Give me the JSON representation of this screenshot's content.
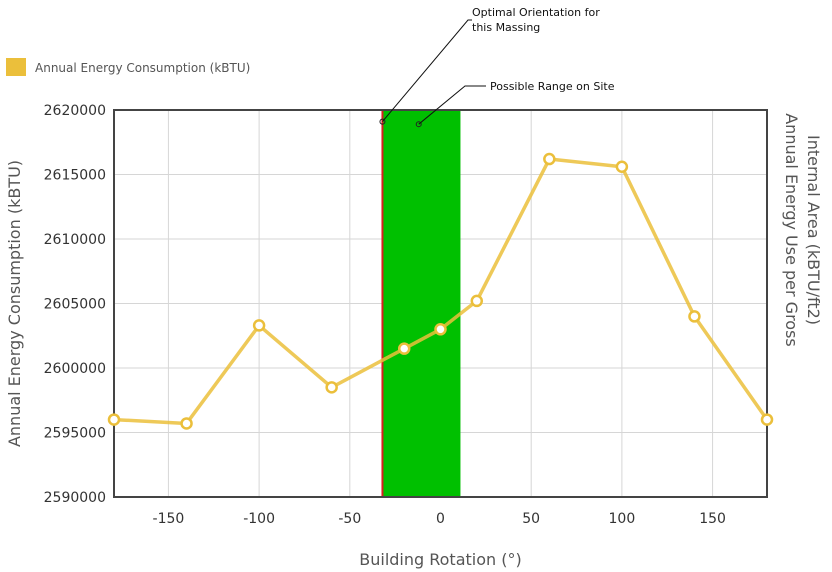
{
  "chart_data": {
    "type": "line",
    "legend": {
      "label": "Annual Energy Consumption (kBTU)",
      "position": "top-left",
      "color": "#ebbf3b"
    },
    "xlabel": "Building Rotation (°)",
    "ylabel": "Annual Energy Consumption (kBTU)",
    "y2label_lines": [
      "Annual Energy Use per Gross",
      "Internal Area (kBTU/ft2)"
    ],
    "xlim": [
      -180,
      180
    ],
    "ylim": [
      2590000,
      2620000
    ],
    "xticks": [
      -150,
      -100,
      -50,
      0,
      50,
      100,
      150
    ],
    "yticks": [
      2590000,
      2595000,
      2600000,
      2605000,
      2610000,
      2615000,
      2620000
    ],
    "grid": true,
    "series": [
      {
        "name": "Annual Energy Consumption (kBTU)",
        "color": "#ebbf3b",
        "x": [
          -180,
          -140,
          -100,
          -60,
          -20,
          0,
          20,
          60,
          100,
          140,
          180
        ],
        "y": [
          2596000,
          2595700,
          2603300,
          2598500,
          2601500,
          2603000,
          2605200,
          2616200,
          2615600,
          2604000,
          2596000
        ]
      }
    ],
    "highlight_band": {
      "x_range": [
        -32,
        11
      ],
      "fill_color": "#00c000",
      "edge_color": "#d62020",
      "edge_x": -32
    },
    "annotations": [
      {
        "id": "optimal",
        "lines": [
          "Optimal Orientation for",
          "this Massing"
        ],
        "anchor_x": -32,
        "anchor_y": 2619100
      },
      {
        "id": "range",
        "lines": [
          "Possible Range on Site"
        ],
        "anchor_x": -12,
        "anchor_y": 2618900
      }
    ],
    "colors": {
      "line": "#ebbf3b",
      "frame": "#444444",
      "grid": "#d6d6d6",
      "tick_text": "#333333",
      "axis_title": "#555555",
      "annotation_line": "#111111"
    }
  }
}
